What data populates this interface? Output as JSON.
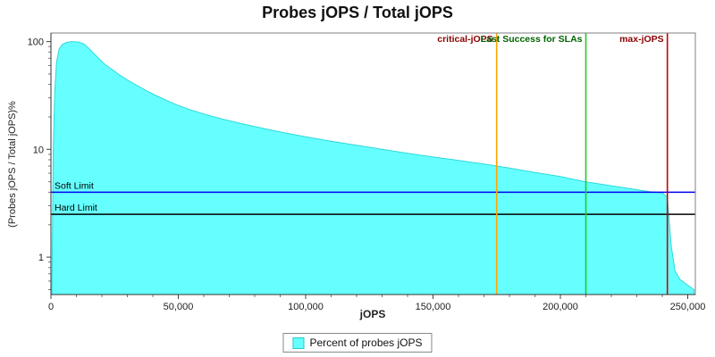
{
  "legend": {
    "label": "Percent of probes jOPS",
    "swatch_color": "#66FFFF"
  },
  "chart_data": {
    "type": "area",
    "title": "Probes jOPS / Total jOPS",
    "xlabel": "jOPS",
    "ylabel": "(Probes jOPS / Total jOPS)%",
    "x_scale": "linear",
    "y_scale": "log",
    "xlim": [
      0,
      253000
    ],
    "ylim": [
      0.45,
      120
    ],
    "x_ticks": [
      0,
      50000,
      100000,
      150000,
      200000,
      250000
    ],
    "y_ticks": [
      1,
      10,
      100
    ],
    "grid": false,
    "legend_position": "bottom",
    "area_color": "#66FFFF",
    "area_edge_color": "#2FD9D9",
    "series": [
      {
        "name": "Percent of probes jOPS",
        "points": [
          [
            400,
            0.5
          ],
          [
            900,
            10
          ],
          [
            1500,
            35
          ],
          [
            2200,
            65
          ],
          [
            3200,
            85
          ],
          [
            4500,
            94
          ],
          [
            6000,
            98
          ],
          [
            8000,
            100
          ],
          [
            11000,
            99
          ],
          [
            13000,
            95
          ],
          [
            15000,
            86
          ],
          [
            17000,
            77
          ],
          [
            19000,
            69
          ],
          [
            21000,
            62
          ],
          [
            24000,
            55
          ],
          [
            27000,
            49
          ],
          [
            30000,
            44
          ],
          [
            34000,
            39
          ],
          [
            38000,
            34.5
          ],
          [
            42000,
            31
          ],
          [
            46000,
            28
          ],
          [
            50000,
            25.5
          ],
          [
            55000,
            23.2
          ],
          [
            60000,
            21.3
          ],
          [
            67000,
            19.2
          ],
          [
            74000,
            17.5
          ],
          [
            82000,
            15.9
          ],
          [
            90000,
            14.5
          ],
          [
            100000,
            13.1
          ],
          [
            110000,
            11.9
          ],
          [
            120000,
            10.9
          ],
          [
            130000,
            10.0
          ],
          [
            140000,
            9.2
          ],
          [
            150000,
            8.5
          ],
          [
            160000,
            7.9
          ],
          [
            170000,
            7.3
          ],
          [
            180000,
            6.7
          ],
          [
            190000,
            6.1
          ],
          [
            200000,
            5.6
          ],
          [
            210000,
            5.0
          ],
          [
            220000,
            4.6
          ],
          [
            228000,
            4.3
          ],
          [
            235000,
            4.05
          ],
          [
            240000,
            3.95
          ],
          [
            242000,
            3.6
          ],
          [
            243500,
            1.3
          ],
          [
            245000,
            0.75
          ],
          [
            247000,
            0.62
          ],
          [
            250000,
            0.55
          ],
          [
            252500,
            0.5
          ]
        ]
      }
    ],
    "v_markers": [
      {
        "label": "critical-jOPS",
        "x": 175000,
        "line_color": "#FFA500",
        "label_color": "#8B0000"
      },
      {
        "label": "Last Success for SLAs",
        "x": 210000,
        "line_color": "#22CC22",
        "label_color": "#006600"
      },
      {
        "label": "max-jOPS",
        "x": 242000,
        "line_color": "#CC0000",
        "label_color": "#8B0000"
      }
    ],
    "h_markers": [
      {
        "label": "Soft Limit",
        "y": 4.0,
        "line_color": "#0000EE",
        "label_color": "#000000"
      },
      {
        "label": "Hard Limit",
        "y": 2.5,
        "line_color": "#000000",
        "label_color": "#000000"
      }
    ]
  }
}
